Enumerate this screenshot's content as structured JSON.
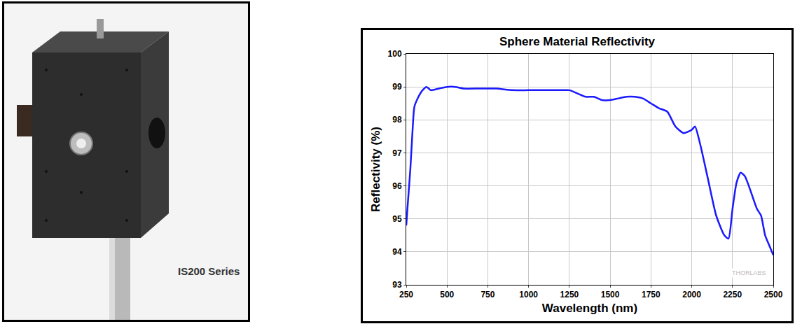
{
  "chart_data": {
    "type": "line",
    "title": "Sphere Material Reflectivity",
    "x_label": "Wavelength (nm)",
    "y_label": "Reflectivity (%)",
    "x": [
      250,
      260,
      275,
      290,
      300,
      325,
      350,
      375,
      400,
      450,
      500,
      550,
      600,
      700,
      800,
      900,
      1000,
      1100,
      1200,
      1250,
      1300,
      1350,
      1400,
      1450,
      1500,
      1550,
      1600,
      1650,
      1700,
      1750,
      1800,
      1850,
      1900,
      1950,
      2000,
      2020,
      2050,
      2100,
      2150,
      2200,
      2225,
      2250,
      2275,
      2300,
      2325,
      2350,
      2400,
      2425,
      2450,
      2475,
      2500
    ],
    "series": [
      {
        "name": "Reflectivity",
        "color": "#1a1aff",
        "values": [
          94.8,
          95.5,
          96.5,
          97.8,
          98.4,
          98.7,
          98.9,
          99.0,
          98.9,
          98.95,
          99.0,
          99.0,
          98.95,
          98.95,
          98.95,
          98.9,
          98.9,
          98.9,
          98.9,
          98.9,
          98.8,
          98.7,
          98.7,
          98.6,
          98.6,
          98.65,
          98.7,
          98.7,
          98.65,
          98.5,
          98.35,
          98.25,
          97.8,
          97.6,
          97.7,
          97.8,
          97.3,
          96.2,
          95.1,
          94.5,
          94.4,
          95.3,
          96.1,
          96.4,
          96.3,
          96.0,
          95.3,
          95.1,
          94.5,
          94.2,
          93.9
        ]
      }
    ],
    "xlim": [
      250,
      2500
    ],
    "xticks": [
      250,
      500,
      750,
      1000,
      1250,
      1500,
      1750,
      2000,
      2250,
      2500
    ],
    "ylim": [
      93,
      100
    ],
    "yticks": [
      93,
      94,
      95,
      96,
      97,
      98,
      99,
      100
    ],
    "grid": true,
    "annotations": [
      {
        "text": "THORLABS"
      }
    ]
  },
  "photo": {
    "label": "IS200 Series"
  }
}
